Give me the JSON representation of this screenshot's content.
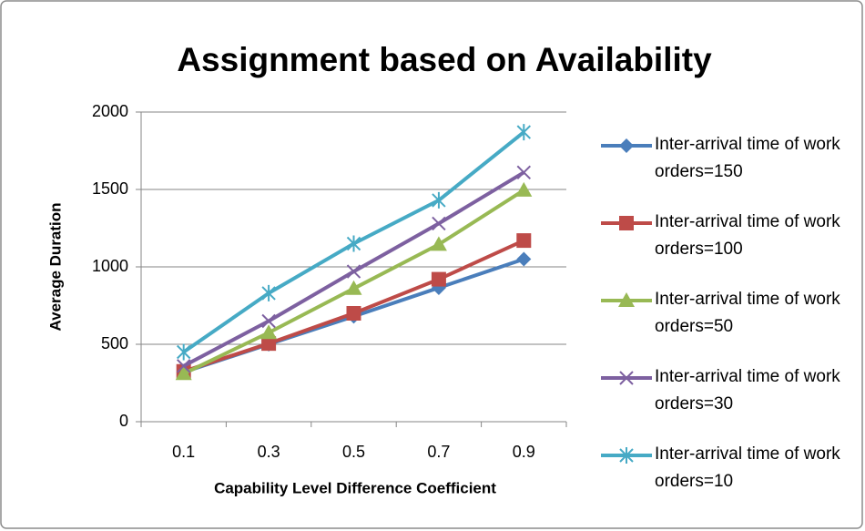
{
  "chart_data": {
    "type": "line",
    "title": "Assignment based on Availability",
    "x_label": "Capability Level Difference Coefficient",
    "y_label": "Average Duration",
    "categories": [
      "0.1",
      "0.3",
      "0.5",
      "0.7",
      "0.9"
    ],
    "series": [
      {
        "name": "Inter-arrival time of work orders=150",
        "color": "#4a7ebb",
        "marker": "diamond",
        "values": [
          320,
          500,
          680,
          865,
          1050
        ]
      },
      {
        "name": "Inter-arrival time of work orders=100",
        "color": "#be4b48",
        "marker": "square",
        "values": [
          325,
          505,
          700,
          920,
          1170
        ]
      },
      {
        "name": "Inter-arrival time of work orders=50",
        "color": "#98b954",
        "marker": "triangle",
        "values": [
          310,
          575,
          860,
          1145,
          1495
        ]
      },
      {
        "name": "Inter-arrival time of work orders=30",
        "color": "#7d60a0",
        "marker": "x",
        "values": [
          360,
          650,
          970,
          1280,
          1610
        ]
      },
      {
        "name": "Inter-arrival time of work orders=10",
        "color": "#46aac5",
        "marker": "star",
        "values": [
          450,
          830,
          1150,
          1430,
          1870
        ]
      }
    ],
    "ylim": [
      0,
      2000
    ],
    "yticks": [
      0,
      500,
      1000,
      1500,
      2000
    ],
    "grid": true,
    "legend": "right"
  }
}
